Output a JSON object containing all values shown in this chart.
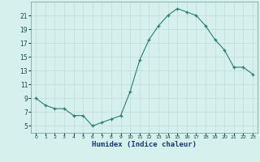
{
  "x": [
    0,
    1,
    2,
    3,
    4,
    5,
    6,
    7,
    8,
    9,
    10,
    11,
    12,
    13,
    14,
    15,
    16,
    17,
    18,
    19,
    20,
    21,
    22,
    23
  ],
  "y": [
    9,
    8,
    7.5,
    7.5,
    6.5,
    6.5,
    5,
    5.5,
    6,
    6.5,
    10,
    14.5,
    17.5,
    19.5,
    21,
    22,
    21.5,
    21,
    19.5,
    17.5,
    16,
    13.5,
    13.5,
    12.5
  ],
  "xlabel": "Humidex (Indice chaleur)",
  "xlim": [
    -0.5,
    23.5
  ],
  "ylim": [
    4,
    23
  ],
  "yticks": [
    5,
    7,
    9,
    11,
    13,
    15,
    17,
    19,
    21
  ],
  "xticks": [
    0,
    1,
    2,
    3,
    4,
    5,
    6,
    7,
    8,
    9,
    10,
    11,
    12,
    13,
    14,
    15,
    16,
    17,
    18,
    19,
    20,
    21,
    22,
    23
  ],
  "line_color": "#2e7d6e",
  "marker": "+",
  "bg_color": "#d6f0ee",
  "grid_color": "#c0dbd8",
  "axes_bg": "#d6f0ee",
  "tick_color": "#1a4a44",
  "xlabel_color": "#1a3a6e",
  "spine_color": "#6a9a94"
}
